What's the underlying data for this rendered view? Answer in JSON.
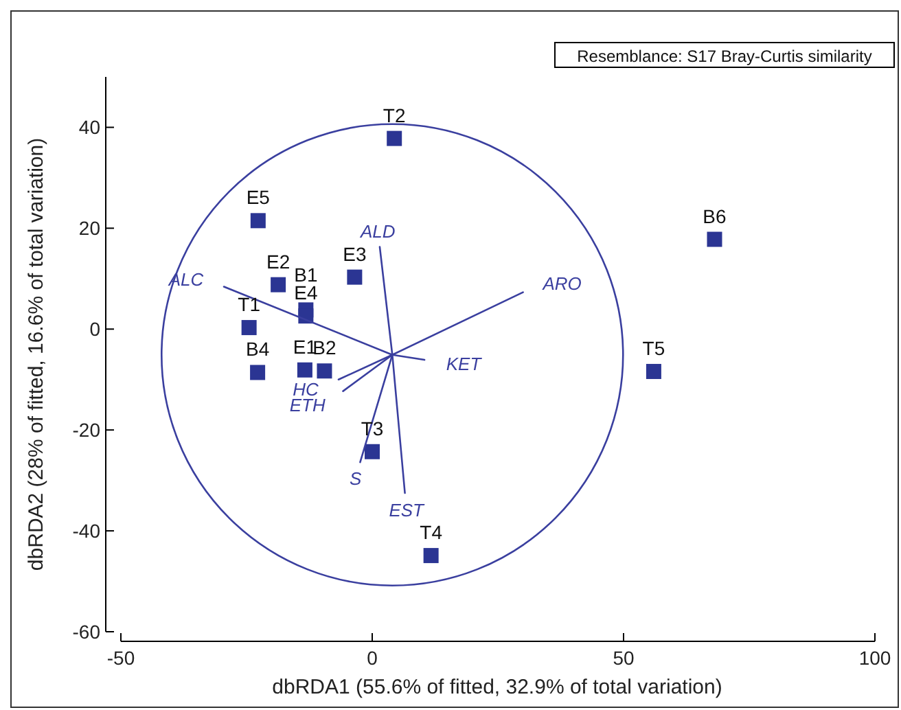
{
  "chart_data": {
    "type": "scatter",
    "xlabel": "dbRDA1 (55.6% of fitted, 32.9% of total variation)",
    "ylabel": "dbRDA2 (28% of fitted, 16.6% of total variation)",
    "xlim": [
      -50,
      100
    ],
    "ylim": [
      -60,
      50
    ],
    "xticks": [
      -50,
      0,
      50,
      100
    ],
    "yticks": [
      -60,
      -40,
      -20,
      0,
      20,
      40
    ],
    "grid": false,
    "series": [
      {
        "marker": "square",
        "color": "#2b3593",
        "x": [
          4.4,
          -22.7,
          68.1,
          -3.5,
          -18.7,
          -13.2,
          -13.2,
          -24.5,
          -22.8,
          -13.4,
          -9.5,
          56.0,
          0,
          11.7
        ],
        "values": [
          37.8,
          21.5,
          17.8,
          10.3,
          8.8,
          3.8,
          2.6,
          0.3,
          -8.6,
          -8.1,
          -8.3,
          -8.4,
          -24.3,
          -44.9
        ]
      },
      {
        "type": "line",
        "color": "#3a3f9f",
        "name": "ALD",
        "x": [
          4.0,
          1.5
        ],
        "values": [
          -5.1,
          16.3
        ]
      },
      {
        "type": "line",
        "color": "#3a3f9f",
        "name": "ALC",
        "x": [
          4.0,
          -29.5
        ],
        "values": [
          -5.1,
          8.4
        ]
      },
      {
        "type": "line",
        "color": "#3a3f9f",
        "name": "ARO",
        "x": [
          4.0,
          30.0
        ],
        "values": [
          -5.1,
          7.3
        ]
      },
      {
        "type": "line",
        "color": "#3a3f9f",
        "name": "KET",
        "x": [
          4.0,
          10.4
        ],
        "values": [
          -5.1,
          -6.1
        ]
      },
      {
        "type": "line",
        "color": "#3a3f9f",
        "name": "HC",
        "x": [
          4.0,
          -6.7
        ],
        "values": [
          -5.1,
          -10.0
        ]
      },
      {
        "type": "line",
        "color": "#3a3f9f",
        "name": "ETH",
        "x": [
          4.0,
          -5.8
        ],
        "values": [
          -5.1,
          -12.3
        ]
      },
      {
        "type": "line",
        "color": "#3a3f9f",
        "name": "S",
        "x": [
          4.0,
          -2.4
        ],
        "values": [
          -5.1,
          -26.4
        ]
      },
      {
        "type": "line",
        "color": "#3a3f9f",
        "name": "EST",
        "x": [
          4.0,
          6.5
        ],
        "values": [
          -5.1,
          -32.5
        ]
      }
    ],
    "annotations": [
      "Resemblance: S17 Bray-Curtis similarity",
      {
        "text": "T2",
        "x": 4.4,
        "y": 37.8
      },
      {
        "text": "E5",
        "x": -22.7,
        "y": 21.5
      },
      {
        "text": "B6",
        "x": 68.1,
        "y": 17.8
      },
      {
        "text": "E3",
        "x": -3.5,
        "y": 10.3
      },
      {
        "text": "E2",
        "x": -18.7,
        "y": 8.8
      },
      {
        "text": "E4",
        "x": -13.2,
        "y": 2.6
      },
      {
        "text": "B1",
        "x": -13.2,
        "y": 3.8
      },
      {
        "text": "T1",
        "x": -24.5,
        "y": 0.3
      },
      {
        "text": "B4",
        "x": -22.8,
        "y": -8.6
      },
      {
        "text": "E1",
        "x": -13.4,
        "y": -8.1
      },
      {
        "text": "B2",
        "x": -9.5,
        "y": -8.3
      },
      {
        "text": "T5",
        "x": 56.0,
        "y": -8.4
      },
      {
        "text": "T3",
        "x": 0,
        "y": -24.3
      },
      {
        "text": "T4",
        "x": 11.7,
        "y": -44.9
      }
    ]
  }
}
